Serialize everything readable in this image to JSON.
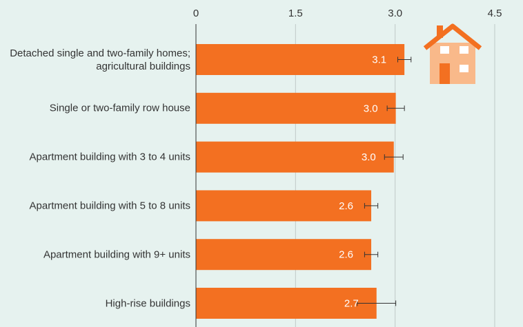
{
  "chart_data": {
    "type": "bar",
    "orientation": "horizontal",
    "color": "#f37021",
    "categories": [
      "Detached single and two-family homes; agricultural buildings",
      "Single or two-family row house",
      "Apartment building with 3 to 4 units",
      "Apartment building with 5 to 8 units",
      "Apartment building with 9+ units",
      "High-rise buildings"
    ],
    "values": [
      3.14,
      3.01,
      2.98,
      2.64,
      2.64,
      2.72
    ],
    "value_labels": [
      "3.1",
      "3.0",
      "3.0",
      "2.6",
      "2.6",
      "2.7"
    ],
    "errors": [
      0.1,
      0.13,
      0.14,
      0.1,
      0.1,
      0.29
    ],
    "xlim": [
      0,
      4.5
    ],
    "xticks": [
      0,
      1.5,
      {
        "value": 3,
        "label": "3.0"
      },
      4.5
    ],
    "grid": true
  }
}
